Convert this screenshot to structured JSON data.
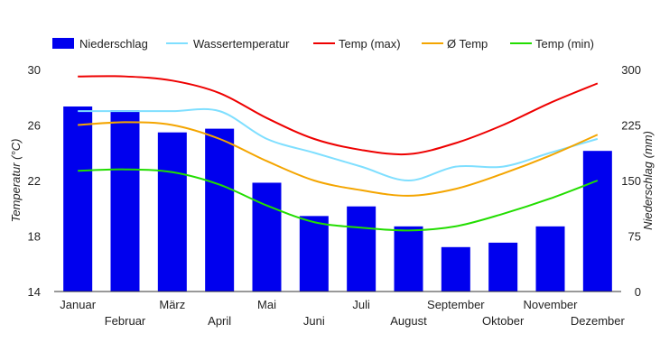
{
  "chart_data": {
    "type": "bar",
    "categories": [
      "Januar",
      "Februar",
      "März",
      "April",
      "Mai",
      "Juni",
      "Juli",
      "August",
      "September",
      "Oktober",
      "November",
      "Dezember"
    ],
    "series": [
      {
        "name": "Niederschlag",
        "type": "bar",
        "axis": "right",
        "color": "#0000ee",
        "values": [
          250,
          245,
          215,
          220,
          147,
          102,
          115,
          88,
          60,
          66,
          88,
          190
        ]
      },
      {
        "name": "Wassertemperatur",
        "type": "line",
        "axis": "left",
        "color": "#7fdfff",
        "values": [
          27.0,
          27.0,
          27.0,
          27.0,
          25.0,
          24.0,
          23.0,
          22.0,
          23.0,
          23.0,
          24.0,
          25.0
        ]
      },
      {
        "name": "Temp (max)",
        "type": "line",
        "axis": "left",
        "color": "#ee0000",
        "values": [
          29.5,
          29.5,
          29.2,
          28.3,
          26.5,
          25.0,
          24.2,
          23.9,
          24.7,
          26.0,
          27.6,
          29.0
        ]
      },
      {
        "name": "Ø Temp",
        "type": "line",
        "axis": "left",
        "color": "#f4a500",
        "values": [
          26.0,
          26.2,
          26.0,
          25.0,
          23.4,
          22.0,
          21.3,
          20.9,
          21.4,
          22.5,
          23.8,
          25.3
        ]
      },
      {
        "name": "Temp (min)",
        "type": "line",
        "axis": "left",
        "color": "#22dd00",
        "values": [
          22.7,
          22.8,
          22.6,
          21.7,
          20.2,
          19.0,
          18.6,
          18.4,
          18.7,
          19.6,
          20.7,
          22.0
        ]
      }
    ],
    "y_left": {
      "label": "Temperatur (°C)",
      "ticks": [
        14,
        18,
        22,
        26,
        30
      ],
      "range": [
        14,
        30
      ]
    },
    "y_right": {
      "label": "Niederschlag (mm)",
      "ticks": [
        0,
        75,
        150,
        225,
        300
      ],
      "range": [
        0,
        300
      ]
    },
    "legend_position": "top",
    "grid": false
  }
}
